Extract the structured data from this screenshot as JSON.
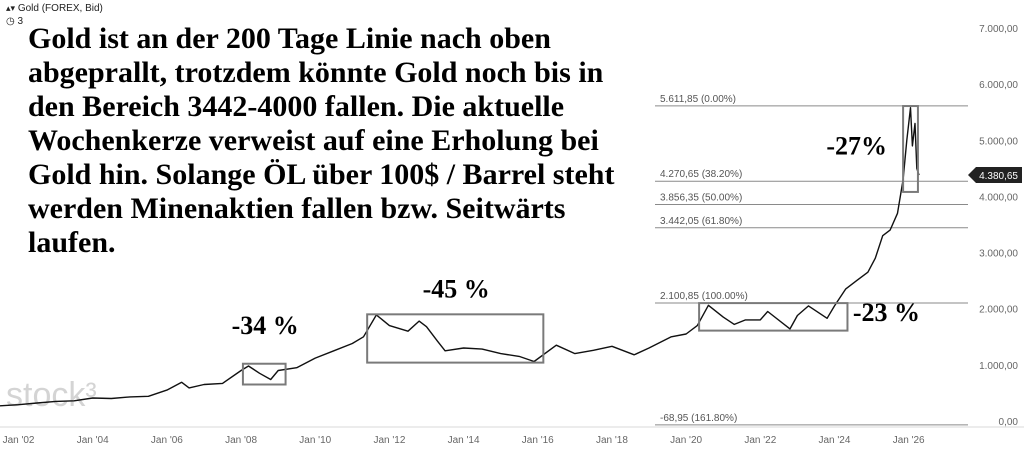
{
  "header": {
    "symbol": "Gold (FOREX, Bid)",
    "count": "3"
  },
  "headline": "Gold ist an der 200 Tage Linie nach oben abgeprallt, trotzdem könnte Gold noch bis in den Bereich 3442-4000 fallen. Die aktuelle Wochenkerze verweist auf eine Erholung bei Gold hin. Solange ÖL über 100$ / Barrel steht werden Minenaktien fallen bzw. Seitwärts laufen.",
  "logo": "stock³",
  "chart_data": {
    "type": "line",
    "title": "",
    "xlabel": "",
    "ylabel": "",
    "xlim": [
      2001.5,
      2027.6
    ],
    "ylim": [
      0,
      7000
    ],
    "x_ticks": [
      {
        "x": 2002,
        "label": "Jan '02"
      },
      {
        "x": 2004,
        "label": "Jan '04"
      },
      {
        "x": 2006,
        "label": "Jan '06"
      },
      {
        "x": 2008,
        "label": "Jan '08"
      },
      {
        "x": 2010,
        "label": "Jan '10"
      },
      {
        "x": 2012,
        "label": "Jan '12"
      },
      {
        "x": 2014,
        "label": "Jan '14"
      },
      {
        "x": 2016,
        "label": "Jan '16"
      },
      {
        "x": 2018,
        "label": "Jan '18"
      },
      {
        "x": 2020,
        "label": "Jan '20"
      },
      {
        "x": 2022,
        "label": "Jan '22"
      },
      {
        "x": 2024,
        "label": "Jan '24"
      },
      {
        "x": 2026,
        "label": "Jan '26"
      }
    ],
    "y_ticks": [
      {
        "y": 0,
        "label": "0,00"
      },
      {
        "y": 1000,
        "label": "1.000,00"
      },
      {
        "y": 2000,
        "label": "2.000,00"
      },
      {
        "y": 3000,
        "label": "3.000,00"
      },
      {
        "y": 4000,
        "label": "4.000,00"
      },
      {
        "y": 5000,
        "label": "5.000,00"
      },
      {
        "y": 6000,
        "label": "6.000,00"
      },
      {
        "y": 7000,
        "label": "7.000,00"
      }
    ],
    "current_price": {
      "value": 4380.65,
      "label": "4.380,65"
    },
    "fib_levels": [
      {
        "value": 5611.85,
        "label": "5.611,85 (0.00%)"
      },
      {
        "value": 4270.65,
        "label": "4.270,65 (38.20%)"
      },
      {
        "value": 3856.35,
        "label": "3.856,35 (50.00%)"
      },
      {
        "value": 3442.05,
        "label": "3.442,05 (61.80%)"
      },
      {
        "value": 2100.85,
        "label": "2.100,85 (100.00%)"
      },
      {
        "value": -68.95,
        "label": "-68,95 (161.80%)"
      }
    ],
    "annotations": [
      {
        "text": "-34 %",
        "x0": 2008.05,
        "x1": 2009.2,
        "y0": 650,
        "y1": 1020,
        "label_x": 2008.65,
        "label_y": 1550,
        "size": 26
      },
      {
        "text": "-45 %",
        "x0": 2011.4,
        "x1": 2016.15,
        "y0": 1040,
        "y1": 1900,
        "label_x": 2013.8,
        "label_y": 2200,
        "size": 26
      },
      {
        "text": "-23 %",
        "x0": 2020.35,
        "x1": 2024.35,
        "y0": 1610,
        "y1": 2100,
        "label_x": 2025.4,
        "label_y": 1780,
        "size": 26
      },
      {
        "text": "-27%",
        "x0": 2025.85,
        "x1": 2026.25,
        "y0": 4080,
        "y1": 5610,
        "label_x": 2024.6,
        "label_y": 4750,
        "size": 26
      }
    ],
    "series": [
      {
        "points": [
          [
            2001.5,
            270
          ],
          [
            2002,
            290
          ],
          [
            2002.5,
            320
          ],
          [
            2003,
            350
          ],
          [
            2003.5,
            360
          ],
          [
            2004,
            410
          ],
          [
            2004.5,
            400
          ],
          [
            2005,
            430
          ],
          [
            2005.5,
            440
          ],
          [
            2006,
            550
          ],
          [
            2006.4,
            690
          ],
          [
            2006.6,
            590
          ],
          [
            2007,
            650
          ],
          [
            2007.5,
            670
          ],
          [
            2008.0,
            900
          ],
          [
            2008.2,
            980
          ],
          [
            2008.5,
            850
          ],
          [
            2008.8,
            740
          ],
          [
            2009.0,
            900
          ],
          [
            2009.5,
            950
          ],
          [
            2010,
            1120
          ],
          [
            2010.5,
            1250
          ],
          [
            2011,
            1380
          ],
          [
            2011.3,
            1500
          ],
          [
            2011.65,
            1890
          ],
          [
            2012,
            1700
          ],
          [
            2012.5,
            1600
          ],
          [
            2012.8,
            1780
          ],
          [
            2013,
            1680
          ],
          [
            2013.3,
            1420
          ],
          [
            2013.5,
            1250
          ],
          [
            2014,
            1300
          ],
          [
            2014.5,
            1280
          ],
          [
            2015,
            1200
          ],
          [
            2015.5,
            1150
          ],
          [
            2015.9,
            1060
          ],
          [
            2016.5,
            1350
          ],
          [
            2017,
            1200
          ],
          [
            2017.5,
            1260
          ],
          [
            2018,
            1330
          ],
          [
            2018.6,
            1180
          ],
          [
            2019,
            1300
          ],
          [
            2019.6,
            1500
          ],
          [
            2020,
            1550
          ],
          [
            2020.3,
            1700
          ],
          [
            2020.6,
            2060
          ],
          [
            2021,
            1850
          ],
          [
            2021.3,
            1720
          ],
          [
            2021.6,
            1800
          ],
          [
            2022,
            1800
          ],
          [
            2022.2,
            1950
          ],
          [
            2022.8,
            1640
          ],
          [
            2023,
            1880
          ],
          [
            2023.3,
            2050
          ],
          [
            2023.8,
            1830
          ],
          [
            2024,
            2050
          ],
          [
            2024.3,
            2350
          ],
          [
            2024.6,
            2500
          ],
          [
            2024.9,
            2650
          ],
          [
            2025.1,
            2900
          ],
          [
            2025.3,
            3300
          ],
          [
            2025.5,
            3400
          ],
          [
            2025.7,
            3700
          ],
          [
            2025.85,
            4300
          ],
          [
            2025.95,
            5000
          ],
          [
            2026.05,
            5580
          ],
          [
            2026.1,
            4900
          ],
          [
            2026.17,
            5300
          ],
          [
            2026.22,
            4500
          ],
          [
            2026.28,
            4380.65
          ]
        ]
      }
    ]
  }
}
